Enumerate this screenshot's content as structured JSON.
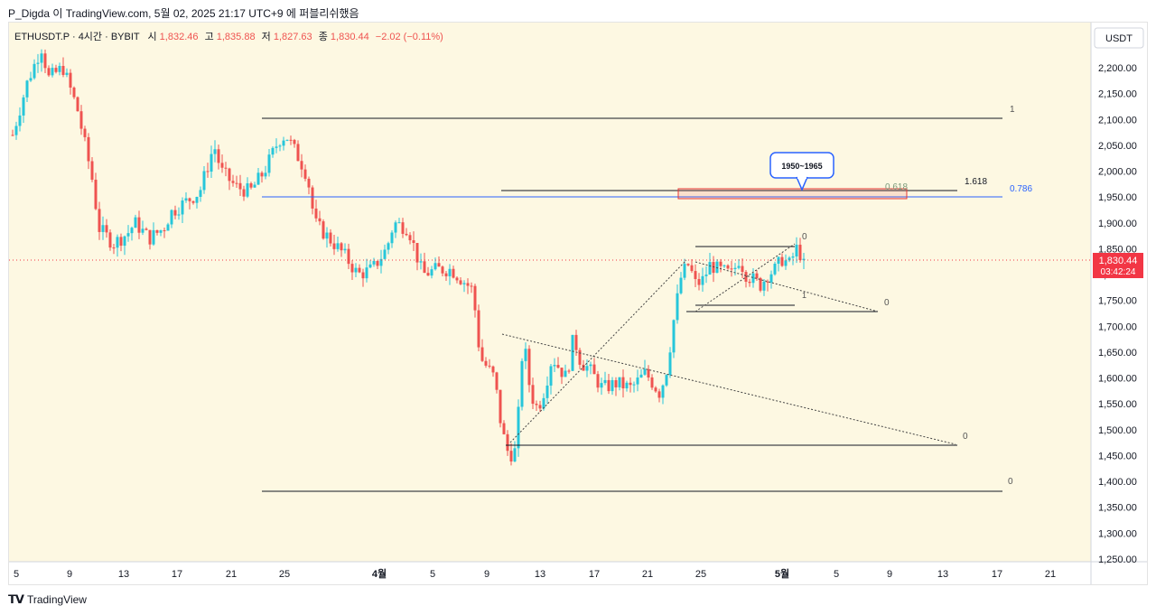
{
  "caption": "P_Digda 이 TradingView.com, 5월 02, 2025 21:17 UTC+9 에 퍼블리쉬했음",
  "footer_logo": "TradingView",
  "footer_logo_icon": "tradingview-logo-icon",
  "colors": {
    "background": "#fdf8e2",
    "up": "#26c6da",
    "down": "#ef5350",
    "level_line": "#131722",
    "fib_blue": "#2962ff",
    "price_tag": "#f23645",
    "zone_border": "#e53935"
  },
  "header": {
    "symbol": "ETHUSDT.P · 4시간 · BYBIT",
    "o_label": "시",
    "o_value": "1,832.46",
    "h_label": "고",
    "h_value": "1,835.88",
    "l_label": "저",
    "l_value": "1,827.63",
    "c_label": "종",
    "c_value": "1,830.44",
    "change": "−2.02 (−0.11%)"
  },
  "price_axis": {
    "currency_label": "USDT",
    "last_price": "1,830.44",
    "countdown": "03:42:24"
  },
  "annotations": {
    "callout": "1950~1965",
    "fib_0618": "0.618",
    "fib_1618": "1.618",
    "fib_0786": "0.786",
    "label_1_top": "1",
    "label_0_bottom": "0",
    "label_0_mid": "0",
    "label_0_right": "0",
    "label_0_upper": "0",
    "label_1_small": "1"
  },
  "chart_data": {
    "type": "candlestick",
    "symbol": "ETHUSDT.P",
    "interval": "4시간",
    "exchange": "BYBIT",
    "ylim": [
      1250,
      2270
    ],
    "y_ticks": [
      2200,
      2150,
      2100,
      2050,
      2000,
      1950,
      1900,
      1850,
      1800,
      1750,
      1700,
      1650,
      1600,
      1550,
      1500,
      1450,
      1400,
      1350,
      1300,
      1250
    ],
    "y_tick_labels": [
      "2,200.00",
      "2,150.00",
      "2,100.00",
      "2,050.00",
      "2,000.00",
      "1,950.00",
      "1,900.00",
      "1,850.00",
      "1,800.00",
      "1,750.00",
      "1,700.00",
      "1,650.00",
      "1,600.00",
      "1,550.00",
      "1,500.00",
      "1,450.00",
      "1,400.00",
      "1,350.00",
      "1,300.00",
      "1,250.00"
    ],
    "x_ticks": [
      "5",
      "9",
      "13",
      "17",
      "21",
      "25",
      "4월",
      "5",
      "9",
      "13",
      "17",
      "21",
      "25",
      "5월",
      "5",
      "9",
      "13",
      "17",
      "21"
    ],
    "last_price": 1830.44,
    "trend_path": [
      [
        0,
        2070
      ],
      [
        2,
        2170
      ],
      [
        4,
        2240
      ],
      [
        5,
        2180
      ],
      [
        7,
        2200
      ],
      [
        9,
        2120
      ],
      [
        11,
        1990
      ],
      [
        12,
        1890
      ],
      [
        14,
        1860
      ],
      [
        16,
        1880
      ],
      [
        17,
        1900
      ],
      [
        19,
        1870
      ],
      [
        21,
        1890
      ],
      [
        22,
        1920
      ],
      [
        24,
        1940
      ],
      [
        26,
        1960
      ],
      [
        28,
        2050
      ],
      [
        29,
        2000
      ],
      [
        31,
        1970
      ],
      [
        33,
        1960
      ],
      [
        34,
        1980
      ],
      [
        35,
        2000
      ],
      [
        37,
        2060
      ],
      [
        38,
        2070
      ],
      [
        40,
        2020
      ],
      [
        41,
        1990
      ],
      [
        42,
        1900
      ],
      [
        44,
        1870
      ],
      [
        46,
        1840
      ],
      [
        48,
        1800
      ],
      [
        50,
        1810
      ],
      [
        52,
        1850
      ],
      [
        53,
        1900
      ],
      [
        55,
        1890
      ],
      [
        57,
        1800
      ],
      [
        59,
        1810
      ],
      [
        61,
        1810
      ],
      [
        64,
        1770
      ],
      [
        65,
        1640
      ],
      [
        66,
        1620
      ],
      [
        67,
        1600
      ],
      [
        68,
        1500
      ],
      [
        69,
        1450
      ],
      [
        70,
        1460
      ],
      [
        71,
        1680
      ],
      [
        72,
        1570
      ],
      [
        73,
        1540
      ],
      [
        74,
        1580
      ],
      [
        75,
        1640
      ],
      [
        76,
        1620
      ],
      [
        77,
        1600
      ],
      [
        78,
        1680
      ],
      [
        79,
        1630
      ],
      [
        80,
        1620
      ],
      [
        82,
        1580
      ],
      [
        84,
        1590
      ],
      [
        86,
        1580
      ],
      [
        88,
        1610
      ],
      [
        89,
        1590
      ],
      [
        90,
        1570
      ],
      [
        91,
        1620
      ],
      [
        92,
        1720
      ],
      [
        93,
        1800
      ],
      [
        94,
        1820
      ],
      [
        95,
        1780
      ],
      [
        96,
        1790
      ],
      [
        97,
        1820
      ],
      [
        98,
        1810
      ],
      [
        100,
        1800
      ],
      [
        101,
        1830
      ],
      [
        102,
        1800
      ],
      [
        103,
        1790
      ],
      [
        104,
        1780
      ],
      [
        105,
        1800
      ],
      [
        106,
        1810
      ],
      [
        107,
        1830
      ],
      [
        108,
        1820
      ],
      [
        109,
        1850
      ],
      [
        110,
        1830
      ]
    ],
    "horizontal_levels": [
      {
        "label": "1",
        "value": 2100
      },
      {
        "label": "0.786",
        "value": 1950
      },
      {
        "label": "1.618",
        "value": 1963
      },
      {
        "label": "0",
        "value": 1470
      },
      {
        "label": "0",
        "value": 1380
      },
      {
        "label": "0",
        "value": 1728
      }
    ],
    "resistance_zone": {
      "label": "1950~1965",
      "low": 1950,
      "high": 1965
    }
  }
}
